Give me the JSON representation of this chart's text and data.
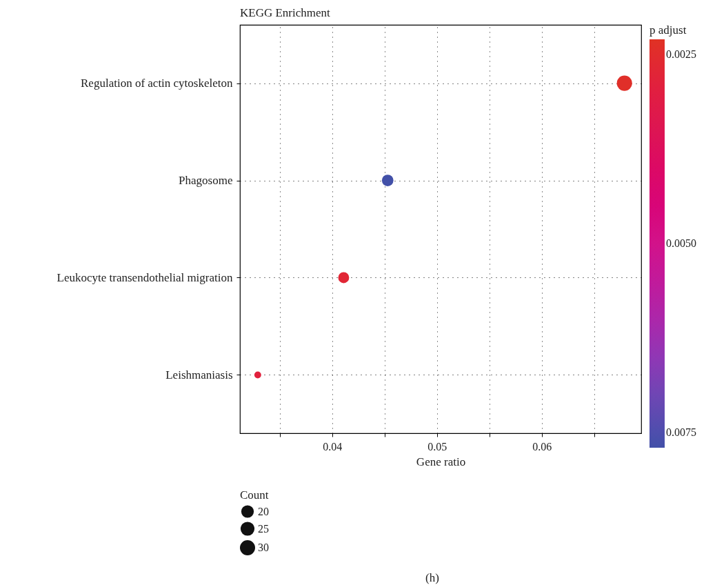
{
  "chart_data": {
    "type": "bubble",
    "title": "KEGG Enrichment",
    "xlabel": "Gene ratio",
    "clabel": "p adjust",
    "legend_title": "Count",
    "categories": [
      "Regulation of actin cytoskeleton",
      "Phagosome",
      "Leukocyte transendothelial migration",
      "Leishmaniasis"
    ],
    "values": [
      0.0679,
      0.0453,
      0.0411,
      0.0329
    ],
    "sizes": [
      35,
      20,
      18,
      7
    ],
    "size_legend": [
      20,
      25,
      30
    ],
    "cvalues": [
      0.0024,
      0.0077,
      0.0027,
      0.0029
    ],
    "clim": [
      0.0023,
      0.0077
    ],
    "cticks": [
      {
        "value": 0.0025,
        "label": "0.0025"
      },
      {
        "value": 0.005,
        "label": "0.0050"
      },
      {
        "value": 0.0075,
        "label": "0.0075"
      }
    ],
    "xlim": [
      0.0312,
      0.0695
    ],
    "xticks": [
      {
        "value": 0.035,
        "label": null
      },
      0.04,
      {
        "value": 0.045,
        "label": null
      },
      0.05,
      {
        "value": 0.055,
        "label": null
      },
      0.06,
      {
        "value": 0.065,
        "label": null
      }
    ],
    "grid": true,
    "marker": "circle",
    "orientation": "horizontal",
    "annotations": [
      "(h)"
    ]
  }
}
